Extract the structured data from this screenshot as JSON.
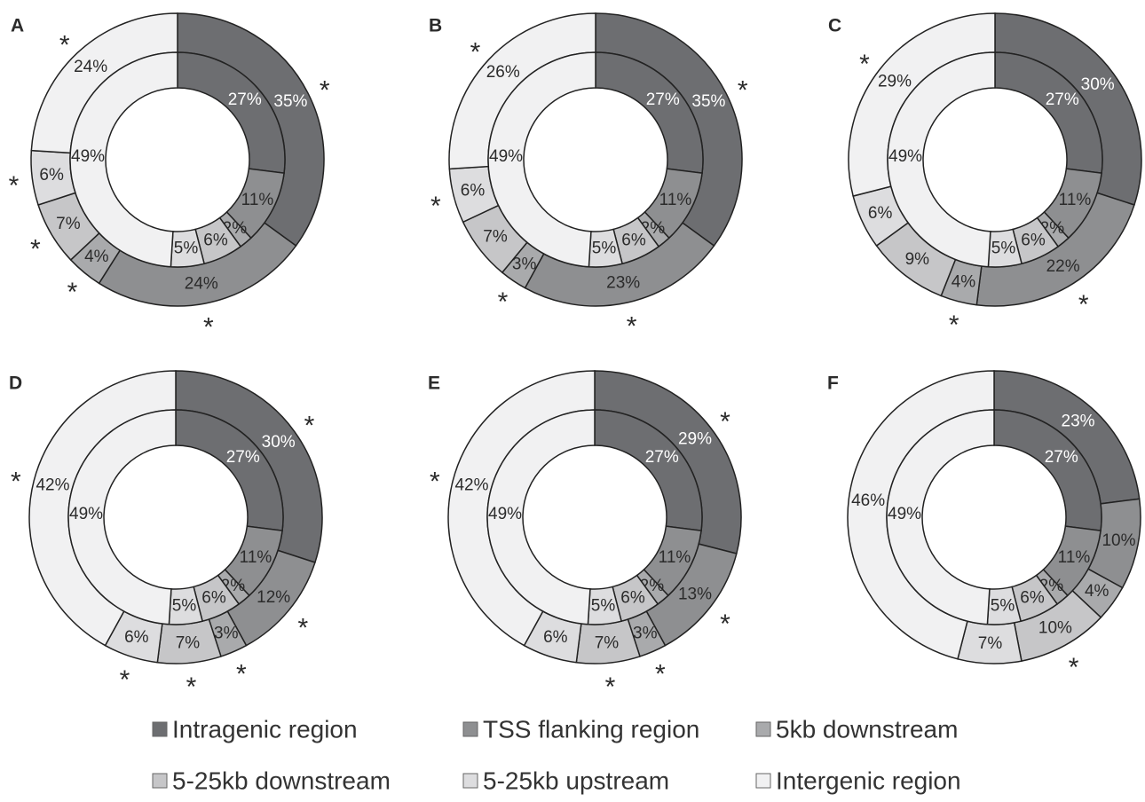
{
  "legend": {
    "categories": [
      "Intragenic region",
      "TSS flanking region",
      "5kb downstream",
      "5-25kb downstream",
      "5-25kb upstream",
      "Intergenic region"
    ],
    "colors": [
      "#6d6e71",
      "#8e8f91",
      "#a9aaac",
      "#c6c6c8",
      "#dddddf",
      "#f1f1f2"
    ]
  },
  "chart_data": [
    {
      "type": "donut",
      "panel": "A",
      "inner": {
        "values": [
          27,
          11,
          2,
          6,
          5,
          49
        ],
        "value_labels": [
          "27%",
          "11%",
          "2%",
          "6%",
          "5%",
          "49%"
        ]
      },
      "outer": {
        "values": [
          35,
          24,
          4,
          7,
          6,
          24
        ],
        "value_labels": [
          "35%",
          "24%",
          "4%",
          "7%",
          "6%",
          "24%"
        ],
        "marks": [
          "*",
          "*",
          "*",
          "*",
          "*",
          "*"
        ]
      }
    },
    {
      "type": "donut",
      "panel": "B",
      "inner": {
        "values": [
          27,
          11,
          2,
          6,
          5,
          49
        ],
        "value_labels": [
          "27%",
          "11%",
          "2%",
          "6%",
          "5%",
          "49%"
        ]
      },
      "outer": {
        "values": [
          35,
          23,
          3,
          7,
          6,
          26
        ],
        "value_labels": [
          "35%",
          "23%",
          "3%",
          "7%",
          "6%",
          "26%"
        ],
        "marks": [
          "*",
          "*",
          "*",
          null,
          "*",
          "*"
        ]
      }
    },
    {
      "type": "donut",
      "panel": "C",
      "inner": {
        "values": [
          27,
          11,
          2,
          6,
          5,
          49
        ],
        "value_labels": [
          "27%",
          "11%",
          "2%",
          "6%",
          "5%",
          "49%"
        ]
      },
      "outer": {
        "values": [
          30,
          22,
          4,
          9,
          6,
          29
        ],
        "value_labels": [
          "30%",
          "22%",
          "4%",
          "9%",
          "6%",
          "29%"
        ],
        "marks": [
          null,
          "*",
          "*",
          null,
          null,
          "*"
        ]
      }
    },
    {
      "type": "donut",
      "panel": "D",
      "inner": {
        "values": [
          27,
          11,
          2,
          6,
          5,
          49
        ],
        "value_labels": [
          "27%",
          "11%",
          "2%",
          "6%",
          "5%",
          "49%"
        ]
      },
      "outer": {
        "values": [
          30,
          12,
          3,
          7,
          6,
          42
        ],
        "value_labels": [
          "30%",
          "12%",
          "3%",
          "7%",
          "6%",
          "42%"
        ],
        "marks": [
          "*",
          "*",
          "*",
          "*",
          "*",
          "*"
        ]
      }
    },
    {
      "type": "donut",
      "panel": "E",
      "inner": {
        "values": [
          27,
          11,
          2,
          6,
          5,
          49
        ],
        "value_labels": [
          "27%",
          "11%",
          "2%",
          "6%",
          "5%",
          "49%"
        ]
      },
      "outer": {
        "values": [
          29,
          13,
          3,
          7,
          6,
          42
        ],
        "value_labels": [
          "29%",
          "13%",
          "3%",
          "7%",
          "6%",
          "42%"
        ],
        "marks": [
          "*",
          "*",
          "*",
          "*",
          null,
          "*"
        ]
      }
    },
    {
      "type": "donut",
      "panel": "F",
      "inner": {
        "values": [
          27,
          11,
          2,
          6,
          5,
          49
        ],
        "value_labels": [
          "27%",
          "11%",
          "2%",
          "6%",
          "5%",
          "49%"
        ]
      },
      "outer": {
        "values": [
          23,
          10,
          4,
          10,
          7,
          46
        ],
        "value_labels": [
          "23%",
          "10%",
          "4%",
          "10%",
          "7%",
          "46%"
        ],
        "marks": [
          null,
          null,
          null,
          "*",
          null,
          null
        ]
      }
    }
  ]
}
